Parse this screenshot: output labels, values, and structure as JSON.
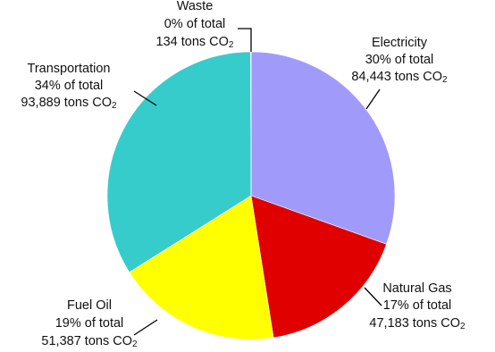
{
  "chart_data": {
    "type": "pie",
    "slices": [
      {
        "name": "Electricity",
        "percent_label": "30% of total",
        "value": 84443,
        "value_label": "84,443 tons CO",
        "unit_sub": "2",
        "color": "#a09bfb"
      },
      {
        "name": "Natural Gas",
        "percent_label": "17%  of total",
        "value": 47183,
        "value_label": "47,183 tons CO",
        "unit_sub": "2",
        "color": "#e00000"
      },
      {
        "name": "Fuel Oil",
        "percent_label": "19%  of total",
        "value": 51387,
        "value_label": "51,387 tons CO",
        "unit_sub": "2",
        "color": "#ffff00"
      },
      {
        "name": "Transportation",
        "percent_label": "34% of total",
        "value": 93889,
        "value_label": "93,889 tons CO",
        "unit_sub": "2",
        "color": "#36cccc"
      },
      {
        "name": "Waste",
        "percent_label": "0% of total",
        "value": 134,
        "value_label": "134 tons CO",
        "unit_sub": "2",
        "color": "#ffffff"
      }
    ],
    "start_at": "top",
    "direction": "clockwise"
  }
}
